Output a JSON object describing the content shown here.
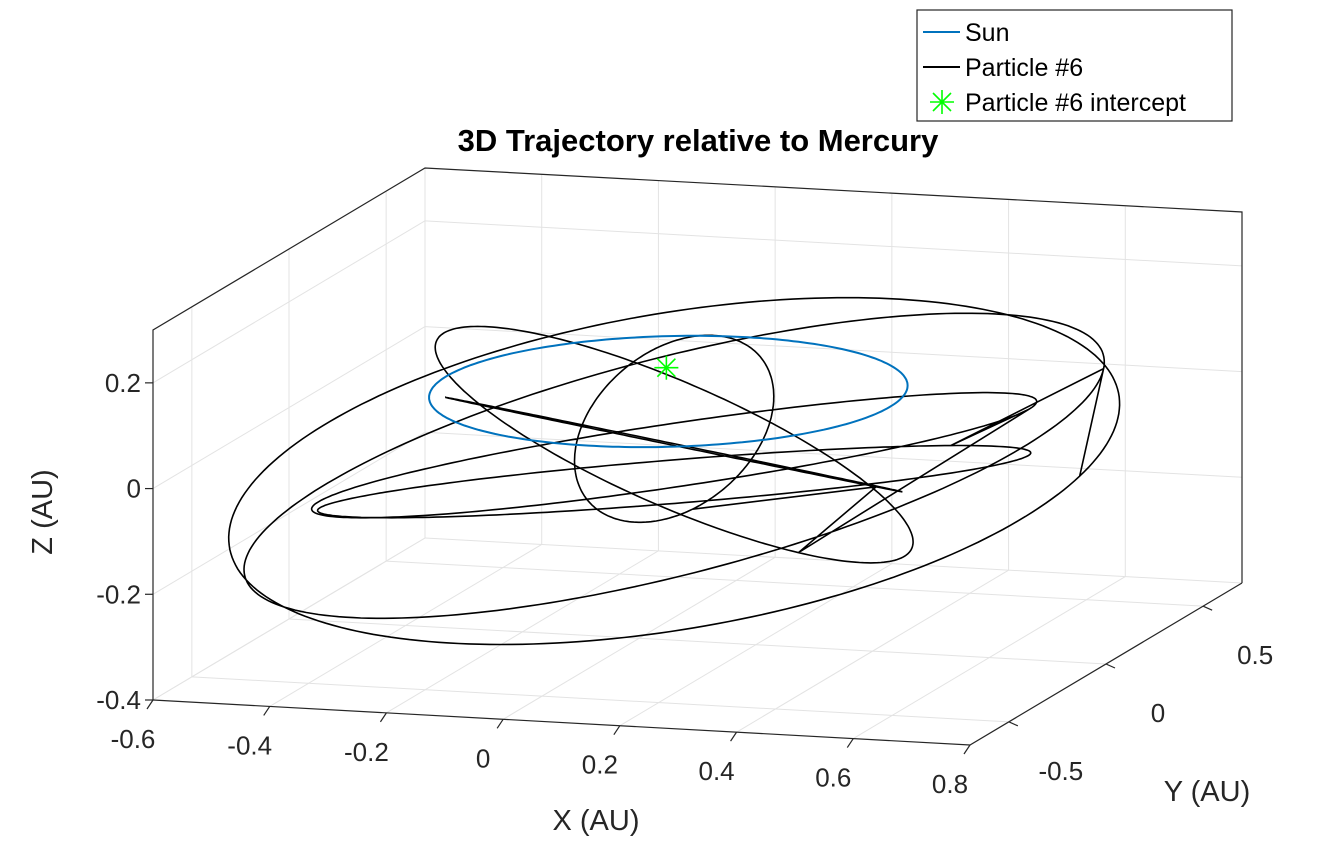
{
  "chart_data": {
    "type": "line",
    "projection": "3d",
    "title": "3D Trajectory relative to Mercury",
    "xlabel": "X (AU)",
    "ylabel": "Y (AU)",
    "zlabel": "Z (AU)",
    "xlim": [
      -0.6,
      0.8
    ],
    "ylim": [
      -0.7,
      0.7
    ],
    "zlim": [
      -0.4,
      0.3
    ],
    "xticks": [
      "-0.6",
      "-0.4",
      "-0.2",
      "0",
      "0.2",
      "0.4",
      "0.6",
      "0.8"
    ],
    "yticks": [
      "-0.5",
      "0",
      "0.5"
    ],
    "zticks": [
      "-0.4",
      "-0.2",
      "0",
      "0.2"
    ],
    "grid": true,
    "legend_position": "top-right",
    "colors": {
      "sun": "#0072BD",
      "particle": "#000000",
      "intercept": "#00FF00"
    },
    "series": [
      {
        "name": "Sun",
        "kind": "orbit",
        "center": [
          0.05,
          0.0,
          0.07
        ],
        "semi_axis_x": 0.39,
        "semi_axis_y": 0.38,
        "tilt_deg": 6
      },
      {
        "name": "Particle #6",
        "kind": "rosette trajectory",
        "loops": [
          {
            "rx": 0.74,
            "ry": 0.66,
            "a0": -0.15,
            "zb": -0.08,
            "za": 0.2,
            "p": 0.3
          },
          {
            "rx": 0.7,
            "ry": 0.56,
            "a0": 0.25,
            "zb": -0.07,
            "za": 0.21,
            "p": 1.1
          },
          {
            "rx": 0.66,
            "ry": 0.5,
            "a0": -0.5,
            "zb": -0.1,
            "za": 0.19,
            "p": 2.0
          },
          {
            "rx": 0.6,
            "ry": 0.44,
            "a0": 0.6,
            "zb": -0.05,
            "za": 0.18,
            "p": 2.9
          },
          {
            "rx": 0.52,
            "ry": 0.36,
            "a0": -0.85,
            "zb": -0.03,
            "za": 0.16,
            "p": 3.8
          },
          {
            "rx": 0.44,
            "ry": 0.26,
            "a0": 1.05,
            "zb": -0.03,
            "za": 0.15,
            "p": 4.7
          },
          {
            "rx": 0.3,
            "ry": 0.16,
            "a0": -1.15,
            "zb": 0.0,
            "za": 0.12,
            "p": 5.5
          }
        ]
      },
      {
        "name": "Particle #6 intercept",
        "kind": "marker",
        "point": [
          0.04,
          0.02,
          0.11
        ]
      }
    ]
  }
}
